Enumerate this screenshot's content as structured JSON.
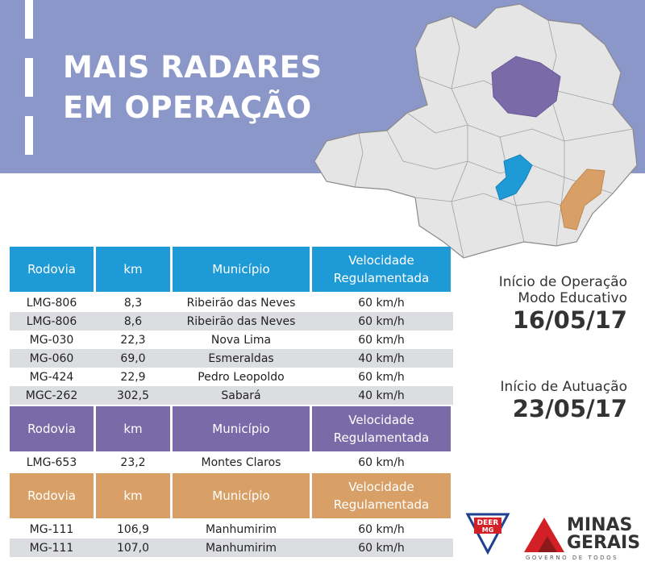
{
  "header": {
    "title": [
      "MAIS RADARES",
      "EM OPERAÇÃO"
    ]
  },
  "tables": [
    {
      "color": "#1e9ad6",
      "columns": [
        "Rodovia",
        "km",
        "Município",
        "Velocidade Regulamentada"
      ],
      "rows": [
        [
          "LMG-806",
          "8,3",
          "Ribeirão das Neves",
          "60 km/h"
        ],
        [
          "LMG-806",
          "8,6",
          "Ribeirão das Neves",
          "60 km/h"
        ],
        [
          "MG-030",
          "22,3",
          "Nova Lima",
          "60 km/h"
        ],
        [
          "MG-060",
          "69,0",
          "Esmeraldas",
          "40 km/h"
        ],
        [
          "MG-424",
          "22,9",
          "Pedro Leopoldo",
          "60 km/h"
        ],
        [
          "MGC-262",
          "302,5",
          "Sabará",
          "40 km/h"
        ]
      ]
    },
    {
      "color": "#7a6aa8",
      "columns": [
        "Rodovia",
        "km",
        "Município",
        "Velocidade Regulamentada"
      ],
      "rows": [
        [
          "LMG-653",
          "23,2",
          "Montes Claros",
          "60 km/h"
        ]
      ]
    },
    {
      "color": "#d8a067",
      "columns": [
        "Rodovia",
        "km",
        "Município",
        "Velocidade Regulamentada"
      ],
      "rows": [
        [
          "MG-111",
          "106,9",
          "Manhumirim",
          "60 km/h"
        ],
        [
          "MG-111",
          "107,0",
          "Manhumirim",
          "60 km/h"
        ]
      ]
    }
  ],
  "info": {
    "operation_label": [
      "Início de Operação",
      "Modo Educativo"
    ],
    "operation_date": "16/05/17",
    "enforcement_label": "Início de Autuação",
    "enforcement_date": "23/05/17"
  },
  "logos": {
    "deer": [
      "DEER",
      "MG"
    ],
    "state": [
      "MINAS",
      "GERAIS"
    ],
    "slogan": "GOVERNO DE TODOS"
  }
}
